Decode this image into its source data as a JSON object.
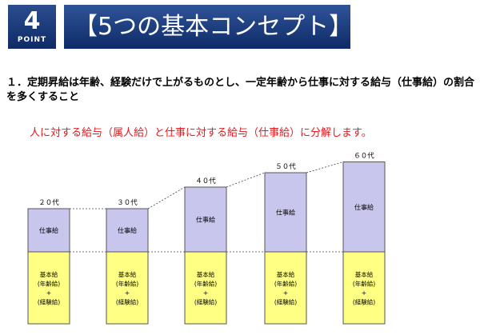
{
  "badge": {
    "number": "4",
    "word": "POINT"
  },
  "title": "【5つの基本コンセプト】",
  "heading": "１．定期昇給は年齢、経験だけで上がるものとし、一定年齢から仕事に対する給与（仕事給）の割合を多くすること",
  "subtext": "人に対する給与（属人給）と仕事に対する給与（仕事給）に分解します。",
  "colors": {
    "job_pay": "#c9c6ee",
    "base_pay": "#ffff84",
    "banner": "#1c3c7e",
    "accent_text": "#e8161b"
  },
  "chart_data": {
    "type": "bar",
    "stacked": true,
    "categories": [
      "２０代",
      "３０代",
      "４０代",
      "５０代",
      "６０代"
    ],
    "series": [
      {
        "name": "基本給",
        "label_lines": [
          "基本給",
          "(年齢給)",
          "+",
          "(経験給)"
        ],
        "values": [
          1,
          1,
          1,
          1,
          1
        ]
      },
      {
        "name": "仕事給",
        "label_lines": [
          "仕事給"
        ],
        "values": [
          0.6,
          0.6,
          0.9,
          1.1,
          1.25
        ]
      }
    ]
  }
}
